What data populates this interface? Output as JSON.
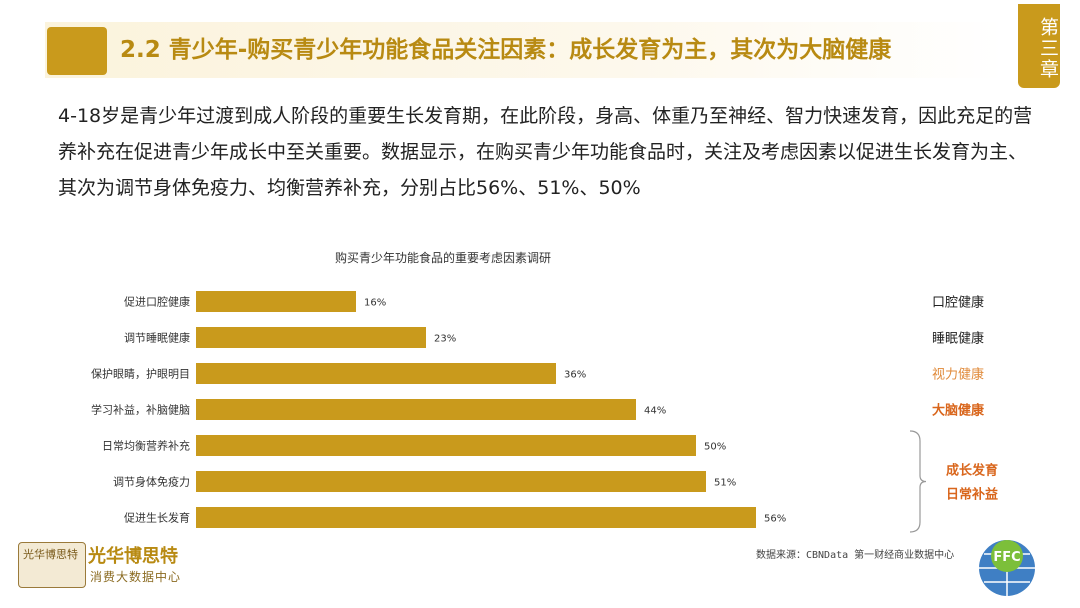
{
  "header": {
    "title": "2.2 青少年-购买青少年功能食品关注因素：成长发育为主，其次为大脑健康",
    "chapter_tab": "第三章"
  },
  "intro": {
    "text": "4-18岁是青少年过渡到成人阶段的重要生长发育期，在此阶段，身高、体重乃至神经、智力快速发育，因此充足的营养补充在促进青少年成长中至关重要。数据显示，在购买青少年功能食品时，关注及考虑因素以促进生长发育为主、其次为调节身体免疫力、均衡营养补充，分别占比56%、51%、50%"
  },
  "colors": {
    "accent": "#c99a1c",
    "bar": "#c99a1c",
    "highlight_light": "#e08a3a",
    "highlight_strong": "#d9661c"
  },
  "chart_data": {
    "type": "bar",
    "orientation": "horizontal",
    "title": "购买青少年功能食品的重要考虑因素调研",
    "categories": [
      "促进口腔健康",
      "调节睡眠健康",
      "保护眼睛，护眼明目",
      "学习补益，补脑健脑",
      "日常均衡营养补充",
      "调节身体免疫力",
      "促进生长发育"
    ],
    "values": [
      16,
      23,
      36,
      44,
      50,
      51,
      56
    ],
    "value_labels": [
      "16%",
      "23%",
      "36%",
      "44%",
      "50%",
      "51%",
      "56%"
    ],
    "unit": "%",
    "xlim": [
      0,
      100
    ],
    "annotations": [
      {
        "text": "口腔健康",
        "style": "normal",
        "row": 0
      },
      {
        "text": "睡眠健康",
        "style": "normal",
        "row": 1
      },
      {
        "text": "视力健康",
        "style": "light",
        "row": 2
      },
      {
        "text": "大脑健康",
        "style": "strong",
        "row": 3
      }
    ],
    "group_annotation": {
      "rows": [
        4,
        5,
        6
      ],
      "lines": [
        "成长发育",
        "日常补益"
      ]
    }
  },
  "footer": {
    "source": "数据来源：CBNData 第一财经商业数据中心",
    "brand_name": "光华博思特",
    "brand_sub": "消费大数据中心",
    "brand_emblem_text": "光华博思特",
    "right_logo_text": "FFC"
  }
}
